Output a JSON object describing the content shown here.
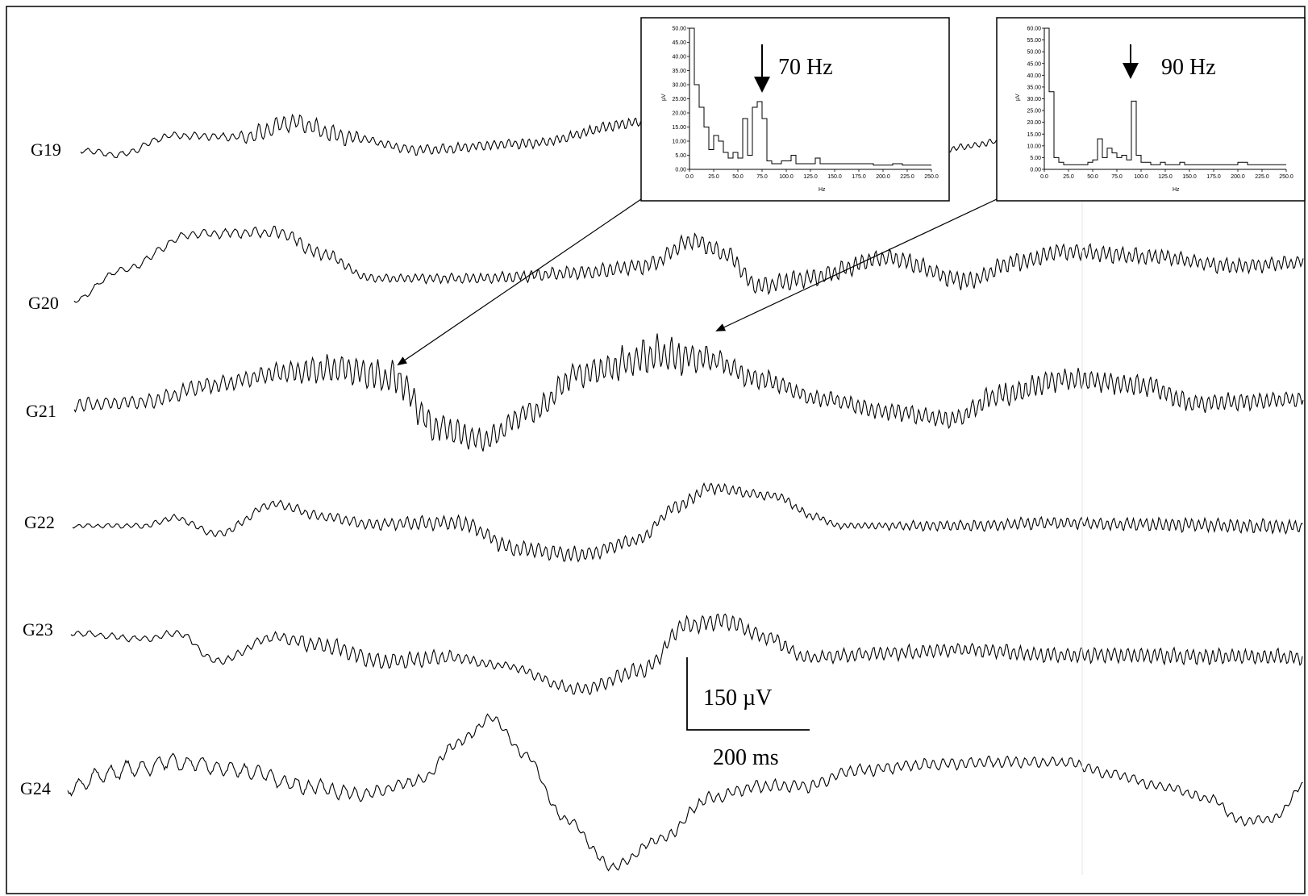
{
  "chart_data": {
    "type": "line",
    "channels": [
      {
        "name": "G19",
        "visible_segments": 2
      },
      {
        "name": "G20"
      },
      {
        "name": "G21"
      },
      {
        "name": "G22"
      },
      {
        "name": "G23"
      },
      {
        "name": "G24"
      }
    ],
    "scale_bar": {
      "amplitude_label": "150 µV",
      "time_label": "200 ms"
    },
    "insets": [
      {
        "type": "bar",
        "peak_annotation": "70 Hz",
        "peak_hz": 70,
        "ylabel": "µV",
        "xlabel": "Hz",
        "ylim": [
          0,
          50
        ],
        "xlim": [
          0,
          250
        ],
        "y_ticks": [
          "50.00",
          "45.00",
          "40.00",
          "35.00",
          "30.00",
          "25.00",
          "20.00",
          "15.00",
          "10.00",
          "5.00",
          "0.00"
        ],
        "x_ticks": [
          "0.0",
          "25.0",
          "50.0",
          "75.0",
          "100.0",
          "125.0",
          "150.0",
          "175.0",
          "200.0",
          "225.0",
          "250.0"
        ],
        "freqs": [
          0,
          5,
          10,
          15,
          20,
          25,
          30,
          35,
          40,
          45,
          50,
          55,
          60,
          65,
          70,
          75,
          80,
          85,
          90,
          95,
          100,
          105,
          110,
          115,
          120,
          125,
          130,
          135,
          140,
          145,
          150,
          160,
          170,
          180,
          190,
          200,
          210,
          220,
          230,
          240
        ],
        "values": [
          50,
          30,
          22,
          15,
          7,
          12,
          10,
          6,
          4,
          6,
          4,
          18,
          5,
          22,
          24,
          18,
          3,
          2,
          2,
          3,
          3,
          5,
          2,
          2,
          2,
          2,
          4,
          2,
          2,
          2,
          2,
          2,
          2,
          2,
          1.5,
          1.5,
          2,
          1.5,
          1.5,
          1.5
        ]
      },
      {
        "type": "bar",
        "peak_annotation": "90 Hz",
        "peak_hz": 90,
        "ylabel": "µV",
        "xlabel": "Hz",
        "ylim": [
          0,
          60
        ],
        "xlim": [
          0,
          250
        ],
        "y_ticks": [
          "60.00",
          "55.00",
          "50.00",
          "45.00",
          "40.00",
          "35.00",
          "30.00",
          "25.00",
          "20.00",
          "15.00",
          "10.00",
          "5.00",
          "0.00"
        ],
        "x_ticks": [
          "0.0",
          "25.0",
          "50.0",
          "75.0",
          "100.0",
          "125.0",
          "150.0",
          "175.0",
          "200.0",
          "225.0",
          "250.0"
        ],
        "freqs": [
          0,
          5,
          10,
          15,
          20,
          25,
          30,
          35,
          40,
          45,
          50,
          55,
          60,
          65,
          70,
          75,
          80,
          85,
          90,
          95,
          100,
          105,
          110,
          115,
          120,
          125,
          130,
          135,
          140,
          145,
          150,
          160,
          170,
          180,
          190,
          200,
          210,
          220,
          230,
          240
        ],
        "values": [
          60,
          33,
          5,
          3,
          2,
          2,
          2,
          2,
          2,
          3,
          4,
          13,
          5,
          9,
          7,
          5,
          6,
          4,
          29,
          6,
          3,
          3,
          2,
          2,
          3,
          2,
          2,
          2,
          3,
          2,
          2,
          2,
          2,
          2,
          2,
          3,
          2,
          2,
          2,
          2
        ]
      }
    ]
  }
}
